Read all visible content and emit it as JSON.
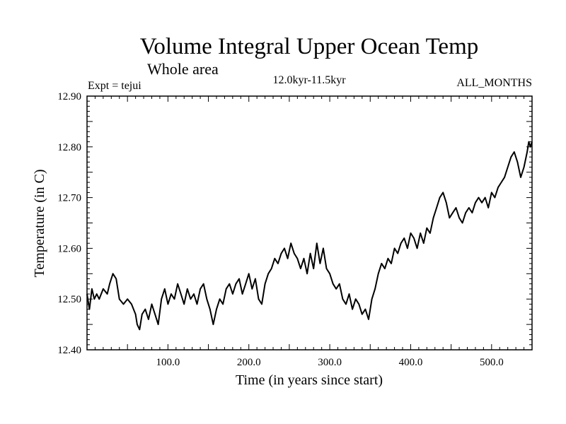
{
  "chart_data": {
    "type": "line",
    "title": "Volume Integral Upper Ocean Temp",
    "subtitle": "Whole area",
    "left_label": "Expt = tejui",
    "center_label": "12.0kyr-11.5kyr",
    "right_label": "ALL_MONTHS",
    "xlabel": "Time (in years since start)",
    "ylabel": "Temperature (in C)",
    "xlim": [
      0,
      550
    ],
    "ylim": [
      12.4,
      12.9
    ],
    "x_ticks": [
      100,
      200,
      300,
      400,
      500
    ],
    "x_tick_labels": [
      "100.0",
      "200.0",
      "300.0",
      "400.0",
      "500.0"
    ],
    "y_ticks": [
      12.4,
      12.5,
      12.6,
      12.7,
      12.8,
      12.9
    ],
    "y_tick_labels": [
      "12.40",
      "12.50",
      "12.60",
      "12.70",
      "12.80",
      "12.90"
    ],
    "grid": false,
    "series": [
      {
        "name": "Volume Integral Upper Ocean Temp",
        "color": "#000000",
        "x": [
          0,
          3,
          6,
          9,
          12,
          15,
          20,
          25,
          28,
          32,
          36,
          40,
          45,
          50,
          55,
          60,
          62,
          65,
          68,
          72,
          76,
          80,
          84,
          88,
          92,
          96,
          100,
          104,
          108,
          112,
          116,
          120,
          124,
          128,
          132,
          136,
          140,
          144,
          148,
          152,
          156,
          160,
          164,
          168,
          172,
          176,
          180,
          184,
          188,
          192,
          196,
          200,
          204,
          208,
          212,
          216,
          220,
          224,
          228,
          232,
          236,
          240,
          244,
          248,
          252,
          256,
          260,
          264,
          268,
          272,
          276,
          280,
          284,
          288,
          292,
          296,
          300,
          304,
          308,
          312,
          316,
          320,
          324,
          328,
          332,
          336,
          340,
          344,
          348,
          352,
          356,
          360,
          364,
          368,
          372,
          376,
          380,
          384,
          388,
          392,
          396,
          400,
          404,
          408,
          412,
          416,
          420,
          424,
          428,
          432,
          436,
          440,
          444,
          448,
          452,
          456,
          460,
          464,
          468,
          472,
          476,
          480,
          484,
          488,
          492,
          496,
          500,
          504,
          508,
          512,
          516,
          520,
          524,
          528,
          532,
          536,
          540,
          544,
          546,
          548,
          550
        ],
        "y": [
          12.51,
          12.48,
          12.52,
          12.5,
          12.51,
          12.5,
          12.52,
          12.51,
          12.53,
          12.55,
          12.54,
          12.5,
          12.49,
          12.5,
          12.49,
          12.47,
          12.45,
          12.44,
          12.47,
          12.48,
          12.46,
          12.49,
          12.47,
          12.45,
          12.5,
          12.52,
          12.49,
          12.51,
          12.5,
          12.53,
          12.51,
          12.49,
          12.52,
          12.5,
          12.51,
          12.49,
          12.52,
          12.53,
          12.5,
          12.48,
          12.45,
          12.48,
          12.5,
          12.49,
          12.52,
          12.53,
          12.51,
          12.53,
          12.54,
          12.51,
          12.53,
          12.55,
          12.52,
          12.54,
          12.5,
          12.49,
          12.53,
          12.55,
          12.56,
          12.58,
          12.57,
          12.59,
          12.6,
          12.58,
          12.61,
          12.59,
          12.58,
          12.56,
          12.58,
          12.55,
          12.59,
          12.56,
          12.61,
          12.57,
          12.6,
          12.56,
          12.55,
          12.53,
          12.52,
          12.53,
          12.5,
          12.49,
          12.51,
          12.48,
          12.5,
          12.49,
          12.47,
          12.48,
          12.46,
          12.5,
          12.52,
          12.55,
          12.57,
          12.56,
          12.58,
          12.57,
          12.6,
          12.59,
          12.61,
          12.62,
          12.6,
          12.63,
          12.62,
          12.6,
          12.63,
          12.61,
          12.64,
          12.63,
          12.66,
          12.68,
          12.7,
          12.71,
          12.69,
          12.66,
          12.67,
          12.68,
          12.66,
          12.65,
          12.67,
          12.68,
          12.67,
          12.69,
          12.7,
          12.69,
          12.7,
          12.68,
          12.71,
          12.7,
          12.72,
          12.73,
          12.74,
          12.76,
          12.78,
          12.79,
          12.77,
          12.74,
          12.76,
          12.79,
          12.81,
          12.8,
          12.81
        ]
      }
    ]
  }
}
